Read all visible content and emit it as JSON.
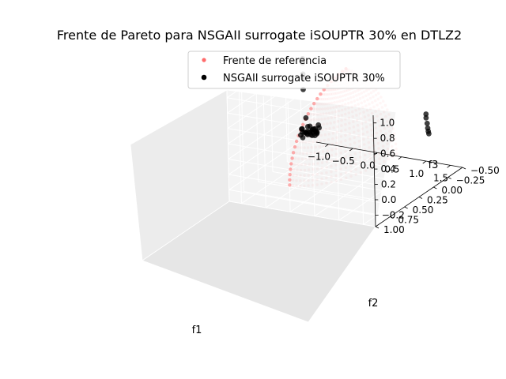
{
  "chart_data": {
    "type": "scatter",
    "projection": "3d",
    "title": "Frente de Pareto para NSGAII surrogate iSOUPTR 30% en DTLZ2",
    "xlabel": "f1",
    "ylabel": "f2",
    "zlabel": "f3",
    "xlim": [
      -1.25,
      1.75
    ],
    "ylim": [
      -0.5,
      1.0
    ],
    "zlim": [
      -0.35,
      1.1
    ],
    "x_ticks": [
      "−1.0",
      "−0.5",
      "0.0",
      "0.5",
      "1.0",
      "1.5"
    ],
    "y_ticks": [
      "−0.50",
      "−0.25",
      "0.00",
      "0.25",
      "0.50",
      "0.75",
      "1.00"
    ],
    "z_ticks": [
      "−0.2",
      "0.0",
      "0.2",
      "0.4",
      "0.6",
      "0.8",
      "1.0"
    ],
    "grid": true,
    "legend_position": "top-center",
    "colors": {
      "reference": "#ff6b6b",
      "solutions": "#000000",
      "pane": "#f2f2f2"
    },
    "series": [
      {
        "name": "Frente de referencia",
        "shape": "spherical octant f1² + f2² + f3² = 1 (f1, f2, f3 ≥ 0)"
      },
      {
        "name": "NSGAII surrogate iSOUPTR 30%",
        "points": [
          [
            -0.95,
            -0.05,
            1.0
          ],
          [
            -0.95,
            -0.05,
            0.95
          ],
          [
            -0.95,
            -0.05,
            0.8
          ],
          [
            -0.95,
            -0.05,
            0.75
          ],
          [
            -0.95,
            -0.05,
            0.6
          ],
          [
            -1.05,
            -0.1,
            0.05
          ],
          [
            -1.02,
            -0.08,
            0.02
          ],
          [
            -1.0,
            -0.12,
            0.0
          ],
          [
            -0.98,
            -0.05,
            -0.03
          ],
          [
            -0.95,
            -0.1,
            0.0
          ],
          [
            -0.92,
            -0.08,
            0.04
          ],
          [
            -0.9,
            -0.12,
            -0.02
          ],
          [
            -0.88,
            -0.05,
            0.02
          ],
          [
            -0.85,
            -0.1,
            0.05
          ],
          [
            -0.82,
            -0.08,
            0.0
          ],
          [
            -0.8,
            -0.12,
            0.03
          ],
          [
            -0.78,
            -0.05,
            0.06
          ],
          [
            -0.75,
            -0.1,
            0.02
          ],
          [
            -0.72,
            -0.08,
            0.05
          ],
          [
            -1.0,
            -0.05,
            0.08
          ],
          [
            -0.95,
            -0.15,
            0.07
          ],
          [
            -0.9,
            -0.02,
            0.06
          ],
          [
            -0.85,
            -0.15,
            -0.04
          ],
          [
            -0.88,
            -0.18,
            0.03
          ],
          [
            -0.8,
            -0.02,
            0.08
          ],
          [
            -0.93,
            -0.2,
            0.01
          ],
          [
            -1.03,
            -0.18,
            0.04
          ],
          [
            -0.98,
            -0.22,
            -0.01
          ],
          [
            -0.76,
            -0.15,
            0.07
          ],
          [
            -0.7,
            -0.05,
            0.08
          ],
          [
            -0.96,
            0.0,
            0.03
          ],
          [
            -0.86,
            -0.22,
            0.06
          ],
          [
            0.9,
            -0.6,
            0.2
          ],
          [
            0.9,
            -0.6,
            0.15
          ],
          [
            0.92,
            -0.6,
            0.08
          ],
          [
            0.93,
            -0.6,
            0.02
          ],
          [
            0.94,
            -0.6,
            -0.02
          ],
          [
            0.95,
            -0.6,
            -0.05
          ],
          [
            0.0,
            0.7,
            0.72
          ]
        ]
      }
    ]
  }
}
